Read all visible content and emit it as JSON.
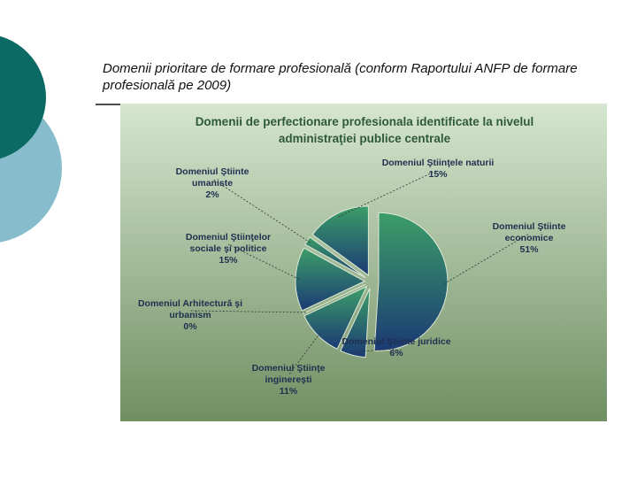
{
  "slide": {
    "title": "Domenii prioritare de formare profesională (conform Raportului ANFP de formare profesională pe 2009)"
  },
  "chart_data": {
    "type": "pie",
    "title": "Domenii de perfectionare profesionala identificate la nivelul administraţiei publice centrale",
    "categories": [
      "Domeniul Ştiinţele naturii",
      "Domeniul Ştiinte economice",
      "Domeniul Ştiinte juridice",
      "Domeniul Ştiinţe inginereşti",
      "Domeniul Arhitectură şi urbanism",
      "Domeniul Ştiinţelor sociale şi politice",
      "Domeniul Ştiinte umaniste"
    ],
    "values": [
      15,
      51,
      6,
      11,
      0,
      15,
      2
    ],
    "value_labels": [
      "15%",
      "51%",
      "6%",
      "11%",
      "0%",
      "15%",
      "2%"
    ],
    "gradient": [
      "#3c9e68",
      "#1b3a74"
    ]
  }
}
